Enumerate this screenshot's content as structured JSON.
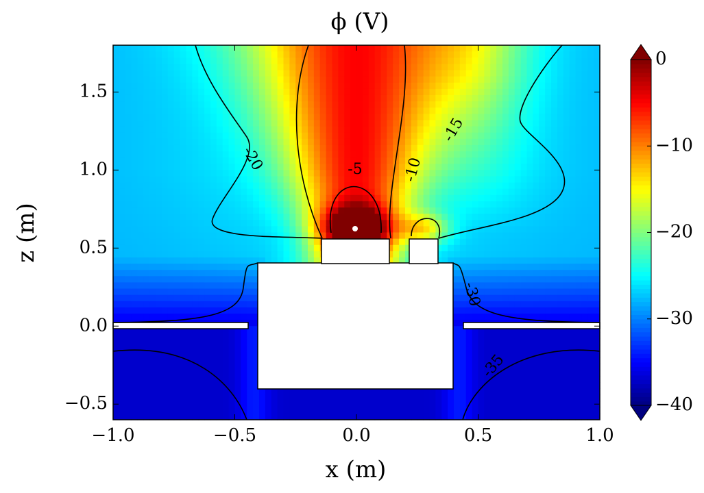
{
  "chart_data": {
    "type": "contour",
    "title": "ϕ (V)",
    "x_label": "x (m)",
    "y_label": "z (m)",
    "xlim": [
      -1.0,
      1.0
    ],
    "ylim": [
      -0.6,
      1.8
    ],
    "xticks": [
      {
        "value": -1.0,
        "label": "−1.0"
      },
      {
        "value": -0.5,
        "label": "−0.5"
      },
      {
        "value": 0,
        "label": "0.0"
      },
      0.5,
      {
        "value": 1.0,
        "label": "1.0"
      }
    ],
    "yticks": [
      {
        "value": -0.5,
        "label": "−0.5"
      },
      {
        "value": 0,
        "label": "0.0"
      },
      0.5,
      {
        "value": 1.0,
        "label": "1.0"
      },
      1.5
    ],
    "clim": [
      -40,
      0
    ],
    "cticks": [
      {
        "value": -40,
        "label": "−40"
      },
      {
        "value": -30,
        "label": "−30"
      },
      {
        "value": -20,
        "label": "−20"
      },
      {
        "value": -10,
        "label": "−10"
      },
      0
    ],
    "colormap": "jet",
    "contour_labels": [
      -20,
      -5,
      -10,
      -15,
      -30,
      -35
    ]
  }
}
